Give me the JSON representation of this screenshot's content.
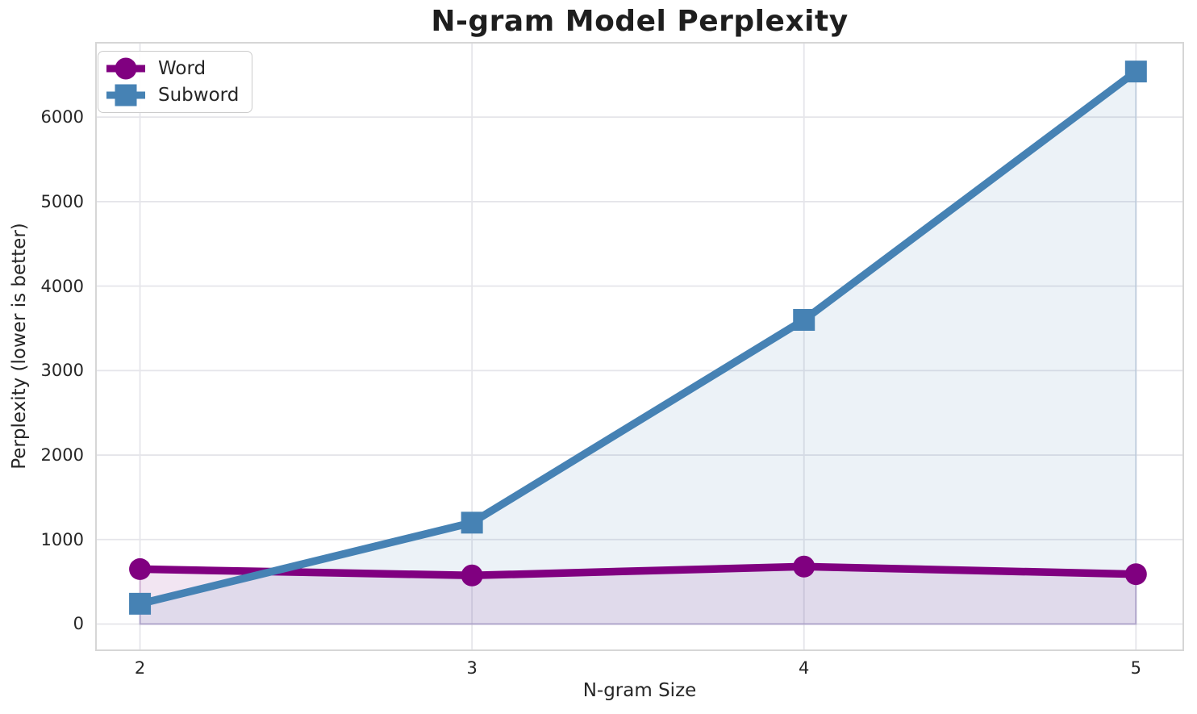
{
  "figure": {
    "background": "#ffffff",
    "text_color": "#262626",
    "grid_color": "#e5e5ea",
    "spine_color": "#d6d6d6"
  },
  "chart_data": {
    "type": "line",
    "title": "N-gram Model Perplexity",
    "xlabel": "N-gram Size",
    "ylabel": "Perplexity (lower is better)",
    "x": [
      2,
      3,
      4,
      5
    ],
    "series": [
      {
        "name": "Word",
        "color": "#800080",
        "marker": "circle",
        "values": [
          650,
          575,
          680,
          590
        ]
      },
      {
        "name": "Subword",
        "color": "#4682B4",
        "marker": "square",
        "values": [
          240,
          1200,
          3600,
          6540
        ]
      }
    ],
    "area_fill": true,
    "fill_alpha": 0.1,
    "fill_baseline": 0,
    "xticks": [
      2,
      3,
      4,
      5
    ],
    "yticks": [
      0,
      1000,
      2000,
      3000,
      4000,
      5000,
      6000
    ],
    "xlim": [
      1.865,
      5.145
    ],
    "ylim": [
      -320,
      6890
    ],
    "grid": true,
    "legend_position": "upper-left"
  }
}
